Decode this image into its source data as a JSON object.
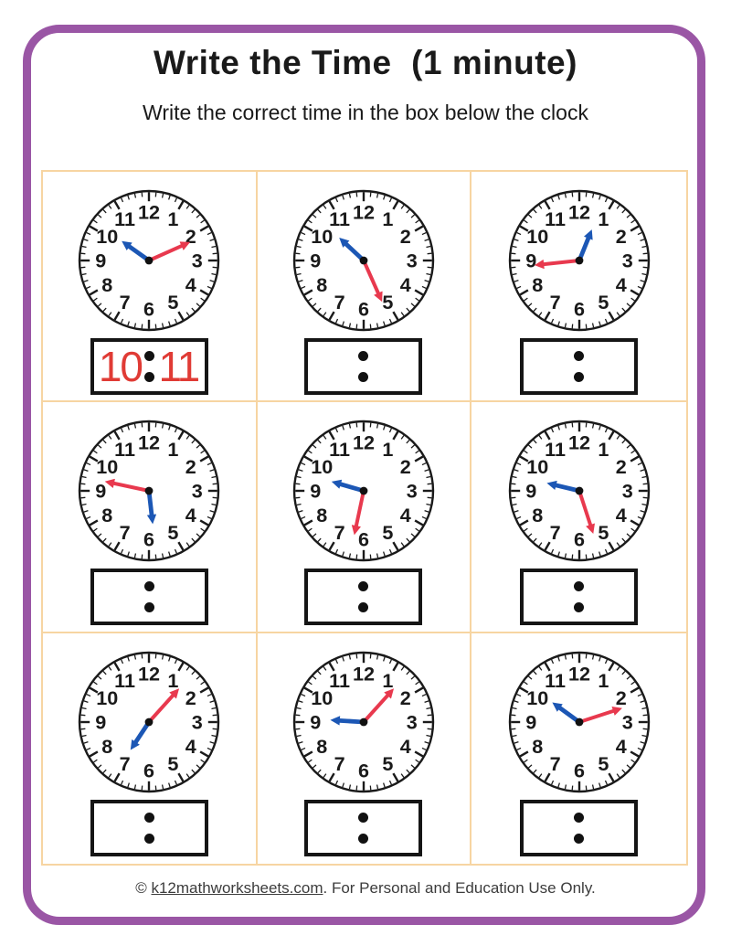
{
  "page": {
    "title": "Write the Time  (1 minute)",
    "subtitle": "Write the correct time in the box below the clock",
    "footer": {
      "copyright_prefix": "© ",
      "link_text": "k12mathworksheets.com",
      "suffix": ". For Personal and Education Use Only."
    }
  },
  "colors": {
    "frame_purple": "#9A56A5",
    "grid_line_orange": "#F7D5A2",
    "hour_hand_blue": "#1C57B5",
    "minute_hand_red": "#E8394E",
    "answer_text_red": "#E03B35",
    "clock_ink": "#1a1a1a"
  },
  "clock_face": {
    "numerals": [
      "1",
      "2",
      "3",
      "4",
      "5",
      "6",
      "7",
      "8",
      "9",
      "10",
      "11",
      "12"
    ]
  },
  "clocks": [
    {
      "position": "row1-col1",
      "hour": 10,
      "minute": 11,
      "answer": {
        "hour_text": "10",
        "minute_text": "11"
      }
    },
    {
      "position": "row1-col2",
      "hour": 10,
      "minute": 26,
      "answer": null
    },
    {
      "position": "row1-col3",
      "hour": 12,
      "minute": 44,
      "answer": null
    },
    {
      "position": "row2-col1",
      "hour": 5,
      "minute": 47,
      "answer": null
    },
    {
      "position": "row2-col2",
      "hour": 9,
      "minute": 32,
      "answer": null
    },
    {
      "position": "row2-col3",
      "hour": 9,
      "minute": 27,
      "answer": null
    },
    {
      "position": "row3-col1",
      "hour": 7,
      "minute": 7,
      "answer": null
    },
    {
      "position": "row3-col2",
      "hour": 9,
      "minute": 7,
      "answer": null
    },
    {
      "position": "row3-col3",
      "hour": 10,
      "minute": 12,
      "answer": null
    }
  ]
}
